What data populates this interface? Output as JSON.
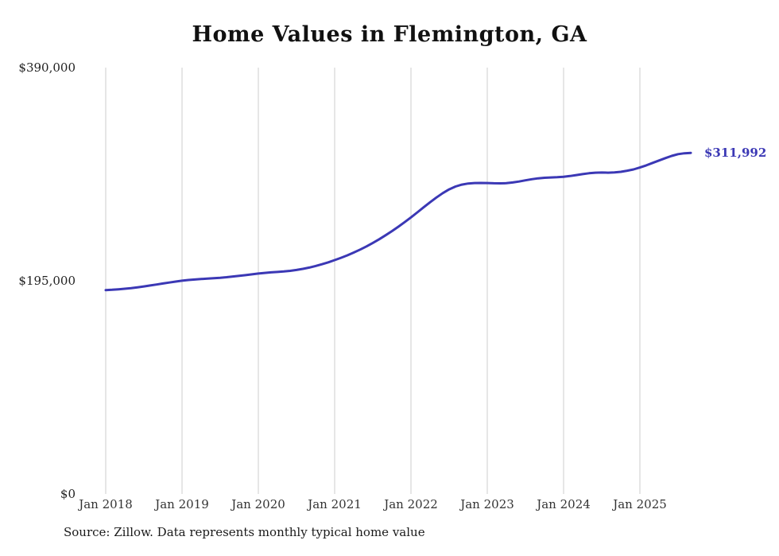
{
  "title": "Home Values in Flemington, GA",
  "chart_data": {
    "type": "line",
    "title": "Home Values in Flemington, GA",
    "series_name": "Monthly typical home value",
    "ylim": [
      0,
      390000
    ],
    "grid": "vertical-only",
    "legend": "none",
    "line_color": "#3b38b5",
    "grid_color": "#cccccc",
    "end_label": "$311,992",
    "end_value": 311992,
    "y_ticks": [
      {
        "value": 390000,
        "label": "$390,000"
      },
      {
        "value": 195000,
        "label": "$195,000"
      },
      {
        "value": 0,
        "label": "$0"
      }
    ],
    "x_ticks": [
      "Jan 2018",
      "Jan 2019",
      "Jan 2020",
      "Jan 2021",
      "Jan 2022",
      "Jan 2023",
      "Jan 2024",
      "Jan 2025"
    ],
    "months": [
      "2018-01",
      "2018-02",
      "2018-03",
      "2018-04",
      "2018-05",
      "2018-06",
      "2018-07",
      "2018-08",
      "2018-09",
      "2018-10",
      "2018-11",
      "2018-12",
      "2019-01",
      "2019-02",
      "2019-03",
      "2019-04",
      "2019-05",
      "2019-06",
      "2019-07",
      "2019-08",
      "2019-09",
      "2019-10",
      "2019-11",
      "2019-12",
      "2020-01",
      "2020-02",
      "2020-03",
      "2020-04",
      "2020-05",
      "2020-06",
      "2020-07",
      "2020-08",
      "2020-09",
      "2020-10",
      "2020-11",
      "2020-12",
      "2021-01",
      "2021-02",
      "2021-03",
      "2021-04",
      "2021-05",
      "2021-06",
      "2021-07",
      "2021-08",
      "2021-09",
      "2021-10",
      "2021-11",
      "2021-12",
      "2022-01",
      "2022-02",
      "2022-03",
      "2022-04",
      "2022-05",
      "2022-06",
      "2022-07",
      "2022-08",
      "2022-09",
      "2022-10",
      "2022-11",
      "2022-12",
      "2023-01",
      "2023-02",
      "2023-03",
      "2023-04",
      "2023-05",
      "2023-06",
      "2023-07",
      "2023-08",
      "2023-09",
      "2023-10",
      "2023-11",
      "2023-12",
      "2024-01",
      "2024-02",
      "2024-03",
      "2024-04",
      "2024-05",
      "2024-06",
      "2024-07",
      "2024-08",
      "2024-09",
      "2024-10",
      "2024-11",
      "2024-12",
      "2025-01",
      "2025-02",
      "2025-03",
      "2025-04",
      "2025-05",
      "2025-06",
      "2025-07",
      "2025-08",
      "2025-09"
    ],
    "values": [
      186500,
      186800,
      187200,
      187700,
      188300,
      189000,
      189800,
      190700,
      191600,
      192500,
      193400,
      194300,
      195100,
      195700,
      196200,
      196600,
      197000,
      197400,
      197800,
      198300,
      198900,
      199500,
      200200,
      200900,
      201600,
      202200,
      202700,
      203100,
      203500,
      204100,
      204900,
      205900,
      207100,
      208500,
      210100,
      211900,
      213900,
      216000,
      218300,
      220800,
      223500,
      226400,
      229600,
      233000,
      236600,
      240400,
      244400,
      248600,
      253000,
      257600,
      262200,
      266800,
      271200,
      275200,
      278600,
      281200,
      283000,
      284000,
      284400,
      284500,
      284400,
      284200,
      284100,
      284300,
      284900,
      285800,
      286900,
      287900,
      288700,
      289200,
      289500,
      289700,
      290100,
      290800,
      291700,
      292600,
      293400,
      293900,
      294000,
      293900,
      294100,
      294700,
      295700,
      296900,
      298600,
      300600,
      302800,
      305000,
      307200,
      309200,
      310800,
      311600,
      311992
    ]
  },
  "footer": {
    "source": "Source: Zillow. Data represents monthly typical home value"
  }
}
